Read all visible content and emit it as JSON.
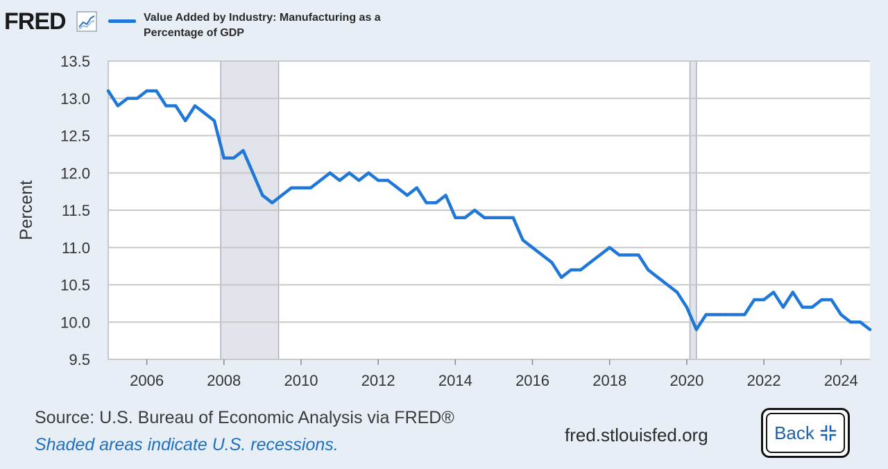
{
  "header": {
    "logo_text": "FRED",
    "logo_icon": "chart-line-icon",
    "legend_label": "Value Added by Industry: Manufacturing as a Percentage of GDP",
    "series_color": "#1f77d8"
  },
  "footer": {
    "source": "Source: U.S. Bureau of Economic Analysis via FRED®",
    "note": "Shaded areas indicate U.S. recessions.",
    "site": "fred.stlouisfed.org",
    "back_label": "Back",
    "back_icon": "shrink-arrows-icon"
  },
  "chart_data": {
    "type": "line",
    "title": "",
    "xlabel": "",
    "ylabel": "Percent",
    "ylim": [
      9.5,
      13.5
    ],
    "xlim": [
      2005.0,
      2024.75
    ],
    "yticks": [
      "13.5",
      "13.0",
      "12.5",
      "12.0",
      "11.5",
      "11.0",
      "10.5",
      "10.0",
      "9.5"
    ],
    "xticks": [
      "2006",
      "2008",
      "2010",
      "2012",
      "2014",
      "2016",
      "2018",
      "2020",
      "2022",
      "2024"
    ],
    "grid": true,
    "recessions": [
      [
        2007.917,
        2009.417
      ],
      [
        2020.083,
        2020.25
      ]
    ],
    "series": [
      {
        "name": "Value Added by Industry: Manufacturing as a Percentage of GDP",
        "color": "#1f77d8",
        "x": [
          2005.0,
          2005.25,
          2005.5,
          2005.75,
          2006.0,
          2006.25,
          2006.5,
          2006.75,
          2007.0,
          2007.25,
          2007.5,
          2007.75,
          2008.0,
          2008.25,
          2008.5,
          2008.75,
          2009.0,
          2009.25,
          2009.5,
          2009.75,
          2010.0,
          2010.25,
          2010.5,
          2010.75,
          2011.0,
          2011.25,
          2011.5,
          2011.75,
          2012.0,
          2012.25,
          2012.5,
          2012.75,
          2013.0,
          2013.25,
          2013.5,
          2013.75,
          2014.0,
          2014.25,
          2014.5,
          2014.75,
          2015.0,
          2015.25,
          2015.5,
          2015.75,
          2016.0,
          2016.25,
          2016.5,
          2016.75,
          2017.0,
          2017.25,
          2017.5,
          2017.75,
          2018.0,
          2018.25,
          2018.5,
          2018.75,
          2019.0,
          2019.25,
          2019.5,
          2019.75,
          2020.0,
          2020.25,
          2020.5,
          2020.75,
          2021.0,
          2021.25,
          2021.5,
          2021.75,
          2022.0,
          2022.25,
          2022.5,
          2022.75,
          2023.0,
          2023.25,
          2023.5,
          2023.75,
          2024.0,
          2024.25,
          2024.5,
          2024.75
        ],
        "values": [
          13.1,
          12.9,
          13.0,
          13.0,
          13.1,
          13.1,
          12.9,
          12.9,
          12.7,
          12.9,
          12.8,
          12.7,
          12.2,
          12.2,
          12.3,
          12.0,
          11.7,
          11.6,
          11.7,
          11.8,
          11.8,
          11.8,
          11.9,
          12.0,
          11.9,
          12.0,
          11.9,
          12.0,
          11.9,
          11.9,
          11.8,
          11.7,
          11.8,
          11.6,
          11.6,
          11.7,
          11.4,
          11.4,
          11.5,
          11.4,
          11.4,
          11.4,
          11.4,
          11.1,
          11.0,
          10.9,
          10.8,
          10.6,
          10.7,
          10.7,
          10.8,
          10.9,
          11.0,
          10.9,
          10.9,
          10.9,
          10.7,
          10.6,
          10.5,
          10.4,
          10.2,
          9.9,
          10.1,
          10.1,
          10.1,
          10.1,
          10.1,
          10.3,
          10.3,
          10.4,
          10.2,
          10.4,
          10.2,
          10.2,
          10.3,
          10.3,
          10.1,
          10.0,
          10.0,
          9.9
        ]
      }
    ]
  }
}
